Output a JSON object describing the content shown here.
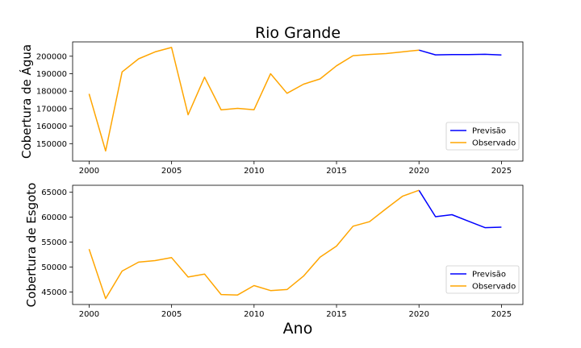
{
  "figure": {
    "title": "Rio Grande",
    "xlabel": "Ano"
  },
  "chart_data": [
    {
      "type": "line",
      "title": "Rio Grande",
      "xlabel": "",
      "ylabel": "Cobertura de Água",
      "xlim": [
        1999,
        2026.3
      ],
      "ylim": [
        140000,
        208200
      ],
      "xticks": [
        2000,
        2005,
        2010,
        2015,
        2020,
        2025
      ],
      "yticks": [
        150000,
        160000,
        170000,
        180000,
        190000,
        200000
      ],
      "grid": false,
      "legend_position": "lower-right",
      "series": [
        {
          "name": "Previsão",
          "color": "#0000ff",
          "x": [
            2020,
            2021,
            2022,
            2023,
            2024,
            2025
          ],
          "y": [
            203500,
            200800,
            200900,
            200900,
            201100,
            200700
          ]
        },
        {
          "name": "Observado",
          "color": "#ffa500",
          "x": [
            2000,
            2001,
            2002,
            2003,
            2004,
            2005,
            2006,
            2007,
            2008,
            2009,
            2010,
            2011,
            2012,
            2013,
            2014,
            2015,
            2016,
            2017,
            2018,
            2019,
            2020
          ],
          "y": [
            178500,
            145800,
            191000,
            198500,
            202500,
            205000,
            166500,
            188000,
            169300,
            170200,
            169400,
            190000,
            178800,
            184000,
            187000,
            194500,
            200300,
            201000,
            201500,
            202500,
            203500
          ]
        }
      ]
    },
    {
      "type": "line",
      "title": "",
      "xlabel": "Ano",
      "ylabel": "Cobertura de Esgoto",
      "xlim": [
        1999,
        2026.3
      ],
      "ylim": [
        42500,
        66400
      ],
      "xticks": [
        2000,
        2005,
        2010,
        2015,
        2020,
        2025
      ],
      "yticks": [
        45000,
        50000,
        55000,
        60000,
        65000
      ],
      "grid": false,
      "legend_position": "lower-right",
      "series": [
        {
          "name": "Previsão",
          "color": "#0000ff",
          "x": [
            2020,
            2021,
            2022,
            2023,
            2024,
            2025
          ],
          "y": [
            65400,
            60100,
            60500,
            59200,
            57900,
            58000
          ]
        },
        {
          "name": "Observado",
          "color": "#ffa500",
          "x": [
            2000,
            2001,
            2002,
            2003,
            2004,
            2005,
            2006,
            2007,
            2008,
            2009,
            2010,
            2011,
            2012,
            2013,
            2014,
            2015,
            2016,
            2017,
            2018,
            2019,
            2020
          ],
          "y": [
            53600,
            43700,
            49200,
            51000,
            51300,
            51900,
            48000,
            48600,
            44500,
            44400,
            46300,
            45300,
            45500,
            48200,
            52000,
            54200,
            58200,
            59100,
            61700,
            64200,
            65400
          ]
        }
      ]
    }
  ]
}
